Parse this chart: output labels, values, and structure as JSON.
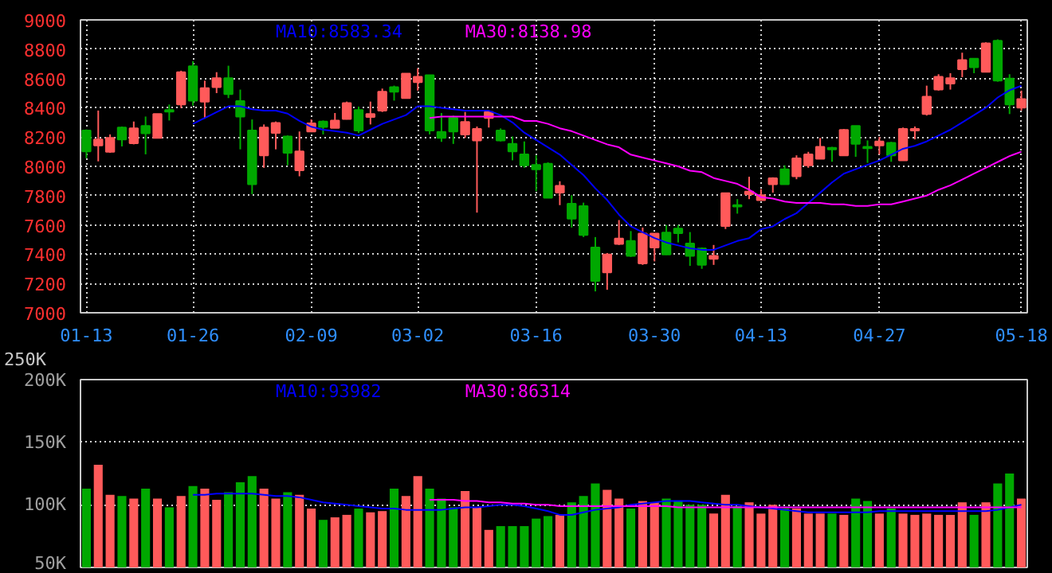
{
  "chart_data": [
    {
      "type": "candlestick",
      "categories": [
        "01-13",
        null,
        null,
        null,
        null,
        null,
        null,
        null,
        null,
        "01-26",
        null,
        null,
        null,
        null,
        null,
        null,
        null,
        null,
        null,
        "02-09",
        null,
        null,
        null,
        null,
        null,
        null,
        null,
        null,
        "03-02",
        null,
        null,
        null,
        null,
        null,
        null,
        null,
        null,
        null,
        "03-16",
        null,
        null,
        null,
        null,
        null,
        null,
        null,
        null,
        null,
        "03-30",
        null,
        null,
        null,
        null,
        null,
        null,
        null,
        null,
        "04-13",
        null,
        null,
        null,
        null,
        null,
        null,
        null,
        null,
        null,
        "04-27",
        null,
        null,
        null,
        null,
        null,
        null,
        null,
        null,
        null,
        null,
        null,
        "05-18"
      ],
      "ohlc": [
        [
          8245,
          8252,
          8055,
          8102
        ],
        [
          8143,
          8381,
          8034,
          8184
        ],
        [
          8099,
          8218,
          8092,
          8194
        ],
        [
          8265,
          8272,
          8136,
          8184
        ],
        [
          8157,
          8306,
          8150,
          8259
        ],
        [
          8276,
          8340,
          8082,
          8225
        ],
        [
          8194,
          8357,
          8191,
          8357
        ],
        [
          8384,
          8422,
          8313,
          8374
        ],
        [
          8422,
          8653,
          8398,
          8643
        ],
        [
          8684,
          8718,
          8415,
          8449
        ],
        [
          8442,
          8585,
          8327,
          8534
        ],
        [
          8541,
          8643,
          8500,
          8602
        ],
        [
          8602,
          8687,
          8466,
          8493
        ],
        [
          8446,
          8524,
          8116,
          8340
        ],
        [
          8245,
          8320,
          7810,
          7878
        ],
        [
          8075,
          8286,
          7990,
          8265
        ],
        [
          8228,
          8306,
          8116,
          8296
        ],
        [
          8204,
          8211,
          8007,
          8092
        ],
        [
          7973,
          8238,
          7932,
          8102
        ],
        [
          8238,
          8320,
          8238,
          8293
        ],
        [
          8306,
          8313,
          8218,
          8269
        ],
        [
          8262,
          8364,
          8262,
          8313
        ],
        [
          8323,
          8442,
          8320,
          8432
        ],
        [
          8384,
          8408,
          8228,
          8245
        ],
        [
          8337,
          8442,
          8286,
          8357
        ],
        [
          8381,
          8531,
          8371,
          8510
        ],
        [
          8541,
          8551,
          8449,
          8510
        ],
        [
          8466,
          8633,
          8463,
          8633
        ],
        [
          8575,
          8670,
          8517,
          8612
        ],
        [
          8622,
          8622,
          8218,
          8245
        ],
        [
          8235,
          8364,
          8167,
          8194
        ],
        [
          8330,
          8347,
          8153,
          8238
        ],
        [
          8218,
          8371,
          8194,
          8303
        ],
        [
          8177,
          8272,
          7684,
          8255
        ],
        [
          8330,
          8381,
          8265,
          8371
        ],
        [
          8245,
          8259,
          8170,
          8177
        ],
        [
          8153,
          8204,
          8041,
          8102
        ],
        [
          8082,
          8170,
          7990,
          8007
        ],
        [
          8010,
          8075,
          7830,
          7980
        ],
        [
          8017,
          8027,
          7786,
          7786
        ],
        [
          7820,
          7898,
          7735,
          7867
        ],
        [
          7745,
          7803,
          7582,
          7643
        ],
        [
          7728,
          7752,
          7517,
          7531
        ],
        [
          7446,
          7517,
          7146,
          7218
        ],
        [
          7276,
          7408,
          7157,
          7398
        ],
        [
          7470,
          7633,
          7463,
          7507
        ],
        [
          7490,
          7558,
          7381,
          7388
        ],
        [
          7337,
          7582,
          7327,
          7541
        ],
        [
          7446,
          7541,
          7351,
          7541
        ],
        [
          7548,
          7599,
          7395,
          7398
        ],
        [
          7575,
          7599,
          7480,
          7544
        ],
        [
          7473,
          7551,
          7320,
          7388
        ],
        [
          7439,
          7446,
          7300,
          7327
        ],
        [
          7368,
          7463,
          7327,
          7388
        ],
        [
          7592,
          7816,
          7572,
          7816
        ],
        [
          7735,
          7776,
          7677,
          7725
        ],
        [
          7810,
          7929,
          7776,
          7827
        ],
        [
          7769,
          7844,
          7769,
          7803
        ],
        [
          7878,
          7925,
          7820,
          7918
        ],
        [
          7980,
          8007,
          7878,
          7878
        ],
        [
          7932,
          8075,
          7912,
          8055
        ],
        [
          8007,
          8099,
          7990,
          8082
        ],
        [
          8051,
          8194,
          8051,
          8133
        ],
        [
          8126,
          8133,
          8031,
          8116
        ],
        [
          8075,
          8255,
          8075,
          8248
        ],
        [
          8276,
          8276,
          8065,
          8153
        ],
        [
          8133,
          8177,
          8024,
          8123
        ],
        [
          8143,
          8201,
          8082,
          8170
        ],
        [
          8160,
          8167,
          8031,
          8075
        ],
        [
          8041,
          8265,
          8041,
          8255
        ],
        [
          8245,
          8272,
          8184,
          8255
        ],
        [
          8357,
          8551,
          8347,
          8476
        ],
        [
          8524,
          8629,
          8517,
          8612
        ],
        [
          8565,
          8636,
          8524,
          8602
        ],
        [
          8663,
          8776,
          8609,
          8725
        ],
        [
          8735,
          8735,
          8636,
          8677
        ],
        [
          8646,
          8847,
          8643,
          8840
        ],
        [
          8857,
          8867,
          8578,
          8585
        ],
        [
          8599,
          8629,
          8357,
          8422
        ],
        [
          8401,
          8517,
          8381,
          8459
        ]
      ],
      "colors": [
        "#00a800",
        "#ff5a5a",
        "#ff5a5a",
        "#00a800",
        "#ff5a5a",
        "#00a800",
        "#ff5a5a",
        "#00a800",
        "#ff5a5a",
        "#00a800",
        "#ff5a5a",
        "#ff5a5a",
        "#00a800",
        "#00a800",
        "#00a800",
        "#ff5a5a",
        "#ff5a5a",
        "#00a800",
        "#ff5a5a",
        "#ff5a5a",
        "#00a800",
        "#ff5a5a",
        "#ff5a5a",
        "#00a800",
        "#ff5a5a",
        "#ff5a5a",
        "#00a800",
        "#ff5a5a",
        "#ff5a5a",
        "#00a800",
        "#00a800",
        "#00a800",
        "#ff5a5a",
        "#ff5a5a",
        "#ff5a5a",
        "#00a800",
        "#00a800",
        "#00a800",
        "#00a800",
        "#00a800",
        "#ff5a5a",
        "#00a800",
        "#00a800",
        "#00a800",
        "#ff5a5a",
        "#ff5a5a",
        "#00a800",
        "#ff5a5a",
        "#ff5a5a",
        "#00a800",
        "#00a800",
        "#00a800",
        "#00a800",
        "#ff5a5a",
        "#ff5a5a",
        "#00a800",
        "#ff5a5a",
        "#ff5a5a",
        "#ff5a5a",
        "#00a800",
        "#ff5a5a",
        "#ff5a5a",
        "#ff5a5a",
        "#00a800",
        "#ff5a5a",
        "#00a800",
        "#00a800",
        "#ff5a5a",
        "#00a800",
        "#ff5a5a",
        "#ff5a5a",
        "#ff5a5a",
        "#ff5a5a",
        "#ff5a5a",
        "#ff5a5a",
        "#00a800",
        "#ff5a5a",
        "#00a800",
        "#00a800",
        "#ff5a5a"
      ],
      "series": [
        {
          "type": "line",
          "name": "MA10:8583.34",
          "color": "#0000ff",
          "values": [
            null,
            null,
            null,
            null,
            null,
            null,
            null,
            null,
            null,
            8290,
            8330,
            8370,
            8410,
            8410,
            8390,
            8380,
            8380,
            8360,
            8310,
            8270,
            8250,
            8240,
            8230,
            8210,
            8250,
            8290,
            8320,
            8350,
            8410,
            8410,
            8400,
            8390,
            8380,
            8380,
            8380,
            8350,
            8300,
            8230,
            8180,
            8130,
            8080,
            8010,
            7940,
            7850,
            7770,
            7670,
            7590,
            7550,
            7510,
            7480,
            7460,
            7440,
            7430,
            7430,
            7460,
            7490,
            7510,
            7570,
            7590,
            7640,
            7680,
            7750,
            7820,
            7890,
            7950,
            7980,
            8010,
            8040,
            8080,
            8120,
            8140,
            8170,
            8210,
            8250,
            8300,
            8350,
            8400,
            8470,
            8520,
            8550
          ]
        },
        {
          "type": "line",
          "name": "MA30:8138.98",
          "color": "#ff00ff",
          "values": [
            null,
            null,
            null,
            null,
            null,
            null,
            null,
            null,
            null,
            null,
            null,
            null,
            null,
            null,
            null,
            null,
            null,
            null,
            null,
            null,
            null,
            null,
            null,
            null,
            null,
            null,
            null,
            null,
            null,
            8330,
            8340,
            8340,
            8340,
            8340,
            8340,
            8340,
            8340,
            8310,
            8310,
            8290,
            8260,
            8240,
            8210,
            8180,
            8150,
            8130,
            8080,
            8060,
            8040,
            8020,
            8000,
            7970,
            7960,
            7920,
            7900,
            7880,
            7840,
            7790,
            7780,
            7760,
            7750,
            7750,
            7750,
            7740,
            7740,
            7730,
            7730,
            7740,
            7740,
            7760,
            7780,
            7800,
            7840,
            7870,
            7910,
            7950,
            7990,
            8030,
            8070,
            8100
          ]
        }
      ],
      "ylim": [
        7000,
        9000
      ],
      "yticks": [
        7000,
        7200,
        7400,
        7600,
        7800,
        8000,
        8200,
        8400,
        8600,
        8800,
        9000
      ],
      "grid": true,
      "legend": "top",
      "annotations": [
        "250K"
      ]
    },
    {
      "type": "bar",
      "categories": [
        null,
        null,
        null,
        null,
        null,
        null,
        null,
        null,
        null,
        null,
        null,
        null,
        null,
        null,
        null,
        null,
        null,
        null,
        null,
        null,
        null,
        null,
        null,
        null,
        null,
        null,
        null,
        null,
        null,
        null,
        null,
        null,
        null,
        null,
        null,
        null,
        null,
        null,
        null,
        null,
        null,
        null,
        null,
        null,
        null,
        null,
        null,
        null,
        null,
        null,
        null,
        null,
        null,
        null,
        null,
        null,
        null,
        null,
        null,
        null,
        null,
        null,
        null,
        null,
        null,
        null,
        null,
        null,
        null,
        null,
        null,
        null,
        null,
        null,
        null,
        null,
        null,
        null,
        null,
        null
      ],
      "values": [
        113000,
        132000,
        108000,
        107000,
        105000,
        113000,
        105000,
        98000,
        107000,
        115000,
        113000,
        104000,
        110000,
        118000,
        123000,
        113000,
        105000,
        110000,
        108000,
        97000,
        88000,
        90000,
        92000,
        97000,
        94000,
        95000,
        113000,
        107000,
        123000,
        113000,
        105000,
        98000,
        111000,
        98000,
        80000,
        83000,
        83000,
        83000,
        89000,
        91000,
        92000,
        102000,
        107000,
        117000,
        112000,
        105000,
        97000,
        103000,
        102000,
        105000,
        103000,
        100000,
        100000,
        93000,
        108000,
        99000,
        102000,
        93000,
        100000,
        97000,
        97000,
        93000,
        93000,
        93000,
        92000,
        105000,
        103000,
        93000,
        97000,
        93000,
        92000,
        93000,
        92000,
        92000,
        102000,
        92000,
        102000,
        117000,
        125000,
        105000
      ],
      "colors": [
        "#00a800",
        "#ff5a5a",
        "#ff5a5a",
        "#00a800",
        "#ff5a5a",
        "#00a800",
        "#ff5a5a",
        "#00a800",
        "#ff5a5a",
        "#00a800",
        "#ff5a5a",
        "#ff5a5a",
        "#00a800",
        "#00a800",
        "#00a800",
        "#ff5a5a",
        "#ff5a5a",
        "#00a800",
        "#ff5a5a",
        "#ff5a5a",
        "#00a800",
        "#ff5a5a",
        "#ff5a5a",
        "#00a800",
        "#ff5a5a",
        "#ff5a5a",
        "#00a800",
        "#ff5a5a",
        "#ff5a5a",
        "#00a800",
        "#00a800",
        "#00a800",
        "#ff5a5a",
        "#ff5a5a",
        "#ff5a5a",
        "#00a800",
        "#00a800",
        "#00a800",
        "#00a800",
        "#00a800",
        "#ff5a5a",
        "#00a800",
        "#00a800",
        "#00a800",
        "#ff5a5a",
        "#ff5a5a",
        "#00a800",
        "#ff5a5a",
        "#ff5a5a",
        "#00a800",
        "#00a800",
        "#00a800",
        "#00a800",
        "#ff5a5a",
        "#ff5a5a",
        "#00a800",
        "#ff5a5a",
        "#ff5a5a",
        "#ff5a5a",
        "#00a800",
        "#ff5a5a",
        "#ff5a5a",
        "#ff5a5a",
        "#00a800",
        "#ff5a5a",
        "#00a800",
        "#00a800",
        "#ff5a5a",
        "#00a800",
        "#ff5a5a",
        "#ff5a5a",
        "#ff5a5a",
        "#ff5a5a",
        "#ff5a5a",
        "#ff5a5a",
        "#00a800",
        "#ff5a5a",
        "#00a800",
        "#00a800",
        "#ff5a5a"
      ],
      "series": [
        {
          "type": "line",
          "name": "MA10:93982",
          "color": "#0000ff",
          "values": [
            null,
            null,
            null,
            null,
            null,
            null,
            null,
            null,
            null,
            108000,
            108000,
            109000,
            109000,
            109000,
            109000,
            108000,
            107000,
            107000,
            106000,
            104000,
            102000,
            101000,
            100000,
            99000,
            98000,
            97000,
            97000,
            96000,
            96000,
            96000,
            96000,
            97000,
            98000,
            98000,
            99000,
            100000,
            100000,
            99000,
            97000,
            95000,
            92000,
            92000,
            94000,
            96000,
            97000,
            98000,
            100000,
            101000,
            102000,
            103000,
            103000,
            103000,
            102000,
            101000,
            100000,
            100000,
            99000,
            98000,
            97000,
            96000,
            95000,
            94000,
            94000,
            94000,
            94000,
            94000,
            94000,
            95000,
            95000,
            95000,
            95000,
            95000,
            95000,
            95000,
            95000,
            95000,
            95000,
            96000,
            98000,
            100000
          ]
        },
        {
          "type": "line",
          "name": "MA30:86314",
          "color": "#ff00ff",
          "values": [
            null,
            null,
            null,
            null,
            null,
            null,
            null,
            null,
            null,
            null,
            null,
            null,
            null,
            null,
            null,
            null,
            null,
            null,
            null,
            null,
            null,
            null,
            null,
            null,
            null,
            null,
            null,
            null,
            null,
            104000,
            104000,
            104000,
            103000,
            103000,
            102000,
            102000,
            101000,
            101000,
            100000,
            100000,
            99000,
            99000,
            99000,
            99000,
            99000,
            99000,
            99000,
            99000,
            99000,
            99000,
            98000,
            98000,
            98000,
            98000,
            98000,
            98000,
            98000,
            98000,
            98000,
            98000,
            98000,
            98000,
            98000,
            98000,
            98000,
            98000,
            98000,
            98000,
            98000,
            98000,
            98000,
            98000,
            98000,
            98000,
            98000,
            98000,
            98000,
            98000,
            98000,
            98000
          ]
        }
      ],
      "ylim": [
        50000,
        200000
      ],
      "yticks": [
        {
          "value": 50000,
          "label": "50K"
        },
        {
          "value": 100000,
          "label": "100K"
        },
        {
          "value": 150000,
          "label": "150K"
        },
        {
          "value": 200000,
          "label": "200K"
        }
      ],
      "grid": "y",
      "legend": "top",
      "tick_labels": "y"
    }
  ]
}
